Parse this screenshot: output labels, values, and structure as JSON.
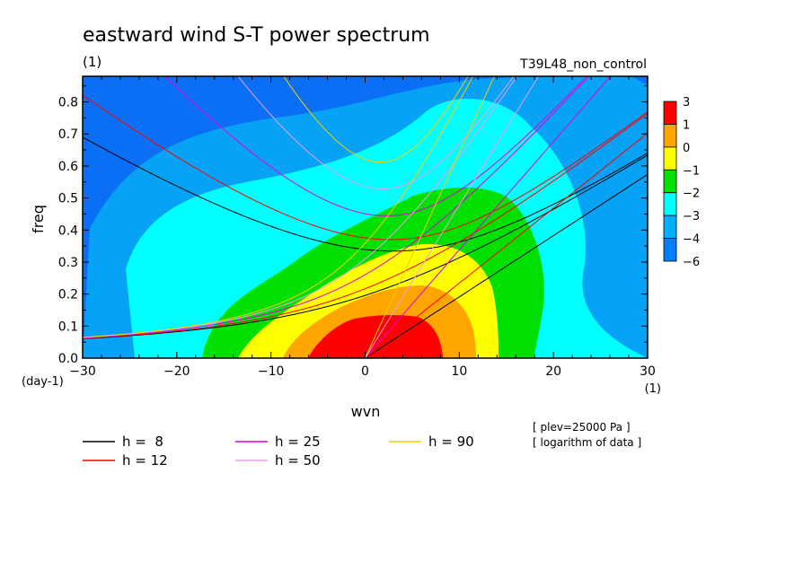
{
  "chart_data": {
    "type": "heatmap",
    "title": "eastward wind S-T power spectrum",
    "subtitle": "(1)",
    "run_label": "T39L48_non_control",
    "xlabel": "wvn",
    "ylabel": "freq",
    "x_unit": "(1)",
    "y_unit": "(day-1)",
    "xlim": [
      -30,
      30
    ],
    "ylim": [
      0,
      0.88
    ],
    "x_ticks": [
      -30,
      -20,
      -10,
      0,
      10,
      20,
      30
    ],
    "y_ticks": [
      0.0,
      0.1,
      0.2,
      0.3,
      0.4,
      0.5,
      0.6,
      0.7,
      0.8
    ],
    "colorbar": {
      "labels": [
        "3",
        "1",
        "0",
        "−1",
        "−2",
        "−3",
        "−4",
        "−6"
      ],
      "colors": [
        "#ff0000",
        "#ffa500",
        "#ffff00",
        "#00e000",
        "#00ffff",
        "#00b0ff",
        "#0080ff"
      ]
    },
    "contour_levels": [
      {
        "level": -6,
        "color": "#0a6ff5"
      },
      {
        "level": -4,
        "color": "#05a2f5"
      },
      {
        "level": -3,
        "color": "#00ffff"
      },
      {
        "level": -2,
        "color": "#00e000"
      },
      {
        "level": -1,
        "color": "#ffff00"
      },
      {
        "level": 0,
        "color": "#ffa500"
      },
      {
        "level": 1,
        "color": "#ff0000"
      }
    ],
    "dispersion_curves": [
      {
        "name": "h =  8",
        "h": 8,
        "color": "#000000"
      },
      {
        "name": "h = 12",
        "h": 12,
        "color": "#ff0000"
      },
      {
        "name": "h = 25",
        "h": 25,
        "color": "#e000e0"
      },
      {
        "name": "h = 50",
        "h": 50,
        "color": "#e8a0e8"
      },
      {
        "name": "h = 90",
        "h": 90,
        "color": "#f0d000"
      }
    ],
    "notes": [
      "[ plev=25000 Pa ]",
      "[ logarithm of data ]"
    ]
  }
}
